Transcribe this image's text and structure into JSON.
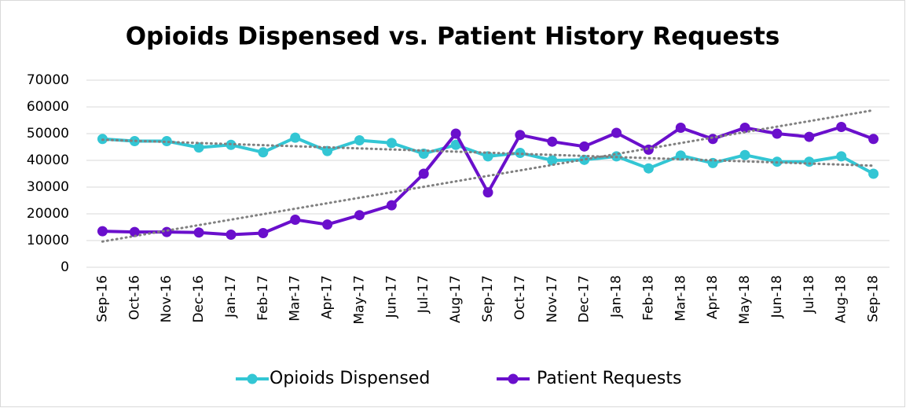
{
  "chart_data": {
    "type": "line",
    "title": "Opioids Dispensed vs. Patient History Requests",
    "categories": [
      "Sep-16",
      "Oct-16",
      "Nov-16",
      "Dec-16",
      "Jan-17",
      "Feb-17",
      "Mar-17",
      "Apr-17",
      "May-17",
      "Jun-17",
      "Jul-17",
      "Aug-17",
      "Sep-17",
      "Oct-17",
      "Nov-17",
      "Dec-17",
      "Jan-18",
      "Feb-18",
      "Mar-18",
      "Apr-18",
      "May-18",
      "Jun-18",
      "Jul-18",
      "Aug-18",
      "Sep-18"
    ],
    "series": [
      {
        "name": "Opioids Dispensed",
        "color": "#33c6d4",
        "values": [
          48000,
          47200,
          47200,
          44800,
          45800,
          43000,
          48500,
          43500,
          47500,
          46500,
          42500,
          45800,
          41500,
          42800,
          40000,
          40200,
          41500,
          37000,
          41800,
          39000,
          42000,
          39500,
          39500,
          41500,
          35000
        ]
      },
      {
        "name": "Patient Requests",
        "color": "#6a0fcc",
        "values": [
          13500,
          13200,
          13200,
          13000,
          12200,
          12800,
          17800,
          16000,
          19500,
          23200,
          35000,
          50000,
          28000,
          49500,
          47000,
          45200,
          50300,
          44000,
          52200,
          48000,
          52200,
          50000,
          48800,
          52500,
          48000
        ]
      }
    ],
    "ylim": [
      0,
      70000
    ],
    "yticks": [
      0,
      10000,
      20000,
      30000,
      40000,
      50000,
      60000,
      70000
    ],
    "grid": true,
    "trendline": true,
    "legend": "bottom"
  }
}
